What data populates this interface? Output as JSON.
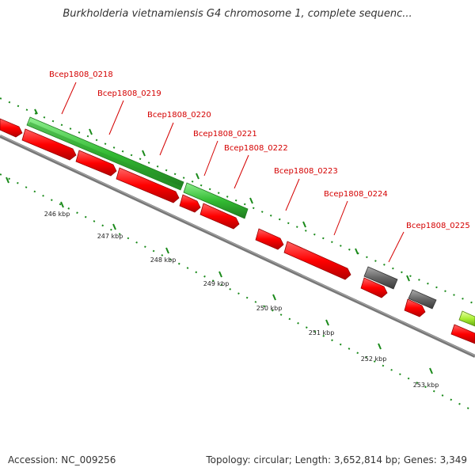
{
  "header": {
    "title": "Burkholderia vietnamiensis G4 chromosome 1, complete sequenc..."
  },
  "footer": {
    "accession": "Accession: NC_009256",
    "stats": "Topology: circular; Length: 3,652,814 bp; Genes: 3,349"
  },
  "colors": {
    "forward_gene": "#ff0000",
    "label_red": "#d40000",
    "cds_green": "#33bb33",
    "cds_gray": "#666666",
    "backbone": "#888888",
    "tick_green": "#1a8a1a"
  },
  "ruler": {
    "labels": [
      "246 kbp",
      "247 kbp",
      "248 kbp",
      "249 kbp",
      "250 kbp",
      "251 kbp",
      "252 kbp",
      "253 kbp"
    ]
  },
  "gene_labels": [
    "Bcep1808_0218",
    "Bcep1808_0219",
    "Bcep1808_0220",
    "Bcep1808_0221",
    "Bcep1808_0222",
    "Bcep1808_0223",
    "Bcep1808_0224",
    "Bcep1808_0225"
  ]
}
